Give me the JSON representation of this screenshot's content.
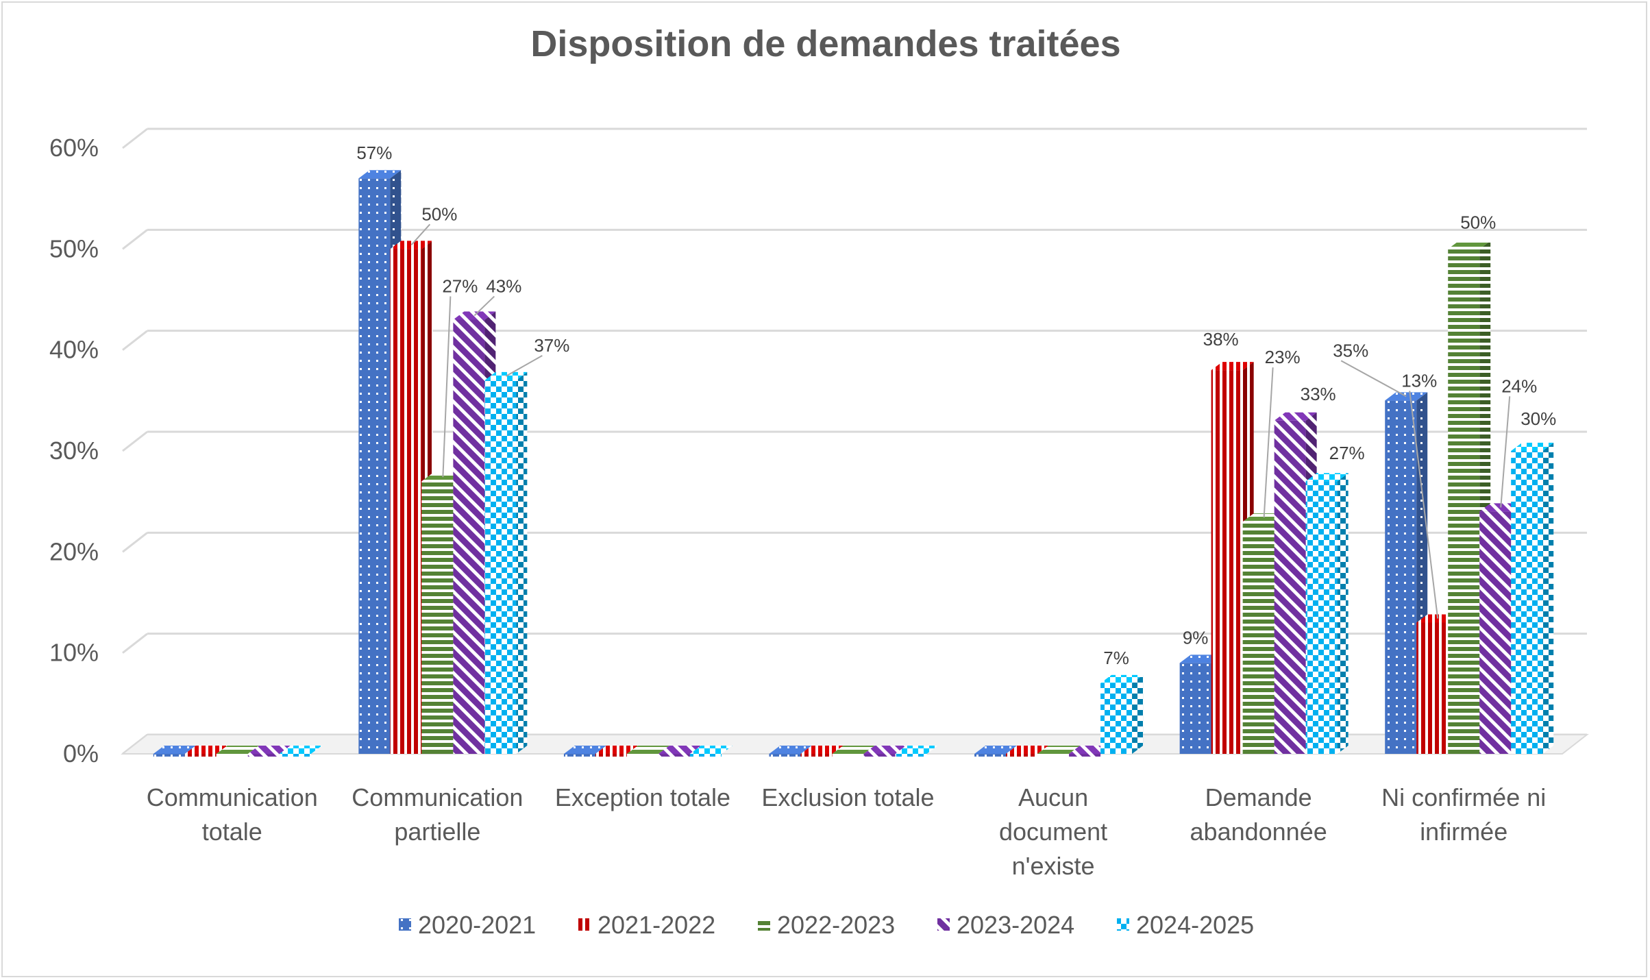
{
  "chart_data": {
    "type": "bar",
    "title": "Disposition de demandes traitées",
    "xlabel": "",
    "ylabel": "",
    "ylim": [
      0,
      60
    ],
    "yticks": [
      "0%",
      "10%",
      "20%",
      "30%",
      "40%",
      "50%",
      "60%"
    ],
    "grid": true,
    "legend_position": "bottom",
    "categories": [
      [
        "Communication",
        "totale"
      ],
      [
        "Communication",
        "partielle"
      ],
      [
        "Exception totale"
      ],
      [
        "Exclusion totale"
      ],
      [
        "Aucun",
        "document",
        "n'existe"
      ],
      [
        "Demande",
        "abandonnée"
      ],
      [
        "Ni confirmée ni",
        "infirmée"
      ]
    ],
    "series": [
      {
        "name": "2020-2021",
        "color": "#4472c4",
        "pattern": "dots",
        "values": [
          0,
          57,
          0,
          0,
          0,
          9,
          35
        ],
        "labels": [
          null,
          "57%",
          null,
          null,
          null,
          "9%",
          "35%"
        ]
      },
      {
        "name": "2021-2022",
        "color": "#c00000",
        "pattern": "vstripes",
        "values": [
          0,
          50,
          0,
          0,
          0,
          38,
          13
        ],
        "labels": [
          null,
          "50%",
          null,
          null,
          null,
          "38%",
          "13%"
        ]
      },
      {
        "name": "2022-2023",
        "color": "#548235",
        "pattern": "hstripes",
        "values": [
          0,
          27,
          0,
          0,
          0,
          23,
          50
        ],
        "labels": [
          null,
          "27%",
          null,
          null,
          null,
          "23%",
          "50%"
        ]
      },
      {
        "name": "2023-2024",
        "color": "#7030a0",
        "pattern": "diagonal",
        "values": [
          0,
          43,
          0,
          0,
          0,
          33,
          24
        ],
        "labels": [
          null,
          "43%",
          null,
          null,
          null,
          "33%",
          "24%"
        ]
      },
      {
        "name": "2024-2025",
        "color": "#00b0f0",
        "pattern": "checker",
        "values": [
          0,
          37,
          0,
          0,
          7,
          27,
          30
        ],
        "labels": [
          null,
          "37%",
          null,
          null,
          "7%",
          "27%",
          "30%"
        ]
      }
    ]
  }
}
